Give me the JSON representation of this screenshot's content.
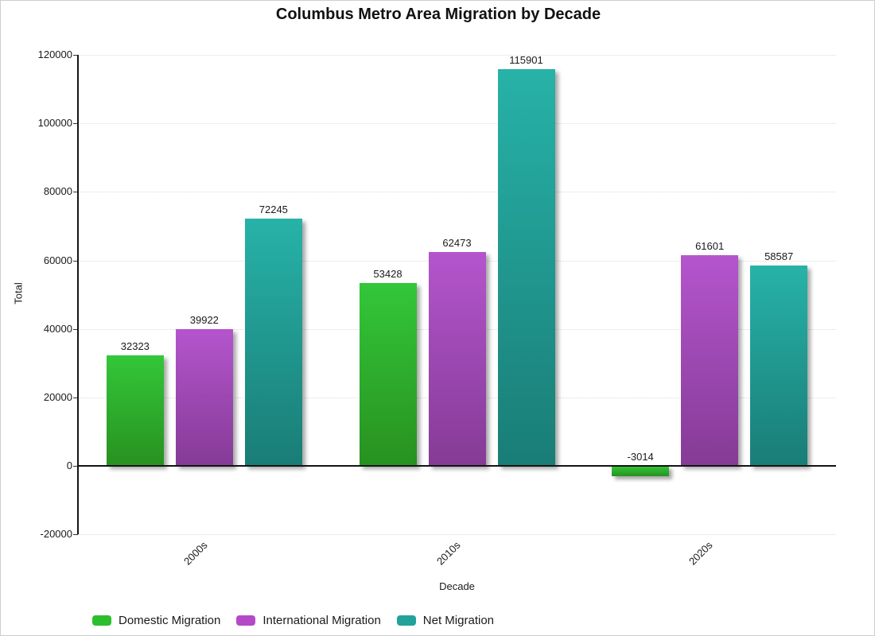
{
  "chart_data": {
    "type": "bar",
    "title": "Columbus Metro Area Migration by Decade",
    "xlabel": "Decade",
    "ylabel": "Total",
    "categories": [
      "2000s",
      "2010s",
      "2020s"
    ],
    "series": [
      {
        "name": "Domestic Migration",
        "values": [
          32323,
          53428,
          -3014
        ],
        "gradient_top": "#33c73a",
        "gradient_bottom": "#28911f",
        "legend_color": "#2dbe2d"
      },
      {
        "name": "International Migration",
        "values": [
          39922,
          62473,
          61601
        ],
        "gradient_top": "#b455cd",
        "gradient_bottom": "#853b96",
        "legend_color": "#b44ac8"
      },
      {
        "name": "Net Migration",
        "values": [
          72245,
          115901,
          58587
        ],
        "gradient_top": "#27b2a8",
        "gradient_bottom": "#197d76",
        "legend_color": "#21a39b"
      }
    ],
    "ylim": [
      -20000,
      120000
    ],
    "yticks": [
      120000,
      100000,
      80000,
      60000,
      40000,
      20000,
      0,
      -20000
    ],
    "grid": true,
    "legend_position": "bottom-left",
    "bar_value_labels": true
  },
  "colors": {
    "axis": "#141414",
    "gridline": "#dcdcdc",
    "text": "#1a1a1a",
    "background": "#ffffff",
    "border": "#cfcfcf"
  }
}
